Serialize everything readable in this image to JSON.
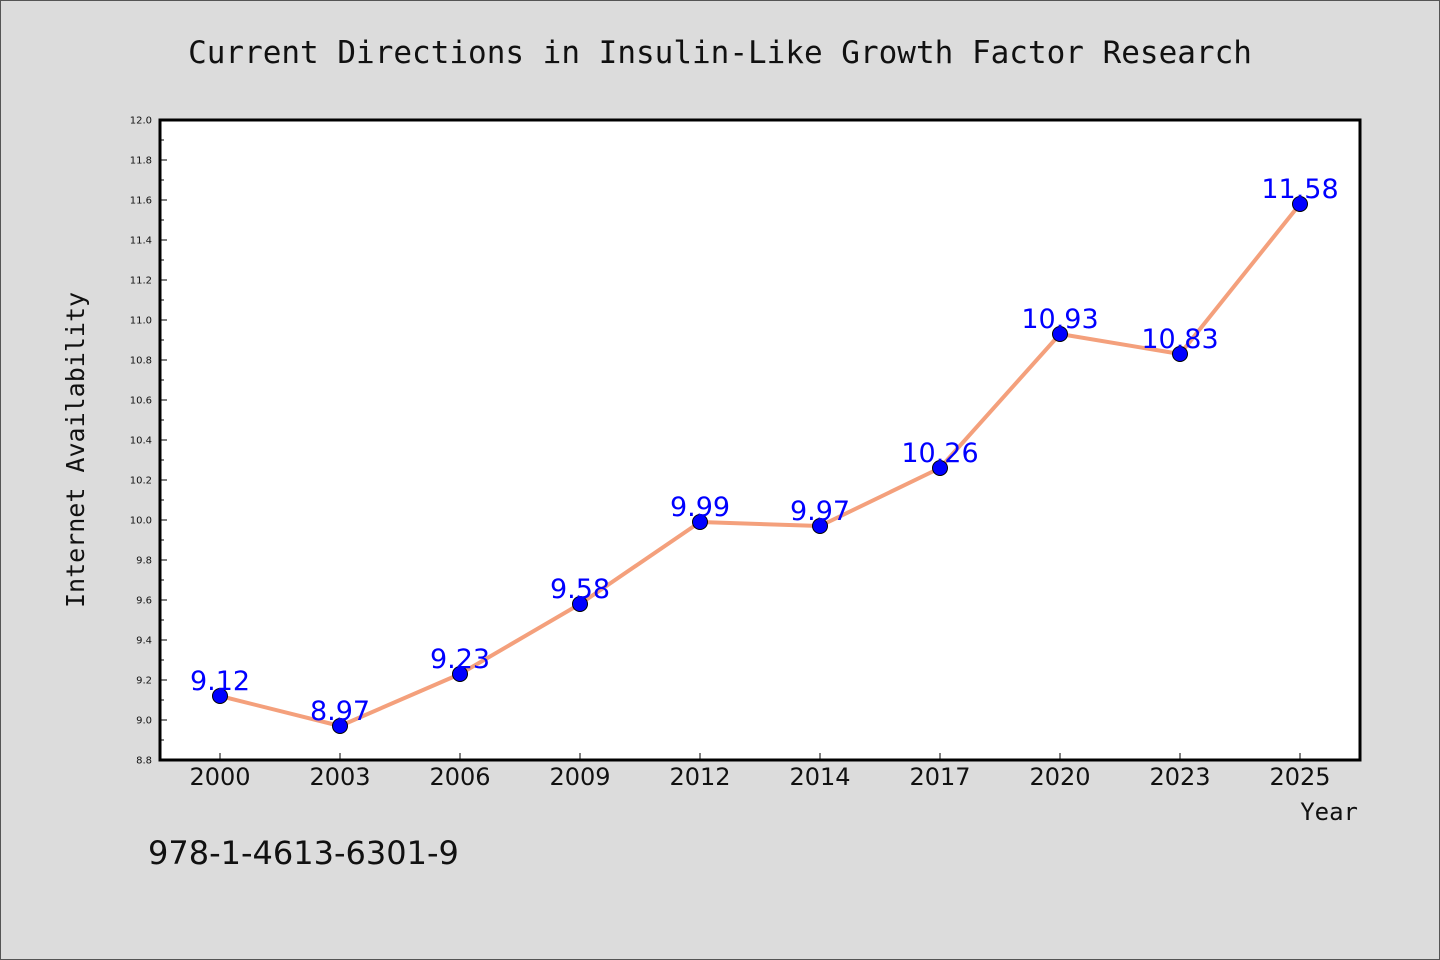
{
  "chart_data": {
    "type": "line",
    "title": "Current Directions in Insulin-Like Growth Factor Research",
    "xlabel": "Year",
    "ylabel": "Internet Availability",
    "categories": [
      "2000",
      "2003",
      "2006",
      "2009",
      "2012",
      "2014",
      "2017",
      "2020",
      "2023",
      "2025"
    ],
    "series": [
      {
        "values": [
          9.12,
          8.97,
          9.23,
          9.58,
          9.99,
          9.97,
          10.26,
          10.93,
          10.83,
          11.58
        ],
        "data_labels": [
          "9.12",
          "8.97",
          "9.23",
          "9.58",
          "9.99",
          "9.97",
          "10.26",
          "10.93",
          "10.83",
          "11.58"
        ],
        "line_color": "#f4a07c",
        "marker_color": "#0000ff"
      }
    ],
    "ylim": [
      8.8,
      12.0
    ],
    "yticks": [
      "8.8",
      "9.0",
      "9.2",
      "9.4",
      "9.6",
      "9.8",
      "10.0",
      "10.2",
      "10.4",
      "10.6",
      "10.8",
      "11.0",
      "11.2",
      "11.4",
      "11.6",
      "11.8",
      "12.0"
    ],
    "grid": false,
    "legend": "none"
  },
  "footer": {
    "isbn": "978-1-4613-6301-9"
  },
  "colors": {
    "background": "#dcdcdc",
    "plot_background": "#ffffff",
    "data_label": "#0000ff"
  }
}
